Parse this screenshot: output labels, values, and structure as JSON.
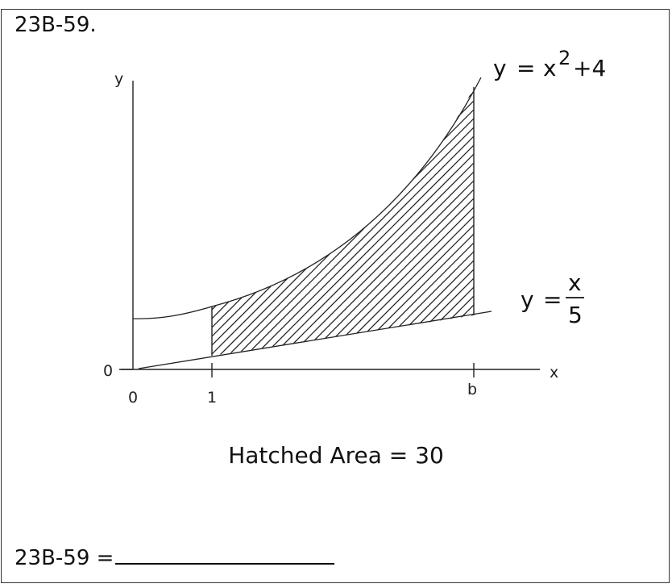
{
  "problem": {
    "id": "23B-59.",
    "caption": "Hatched Area = 30",
    "answer_prefix": "23B-59 ="
  },
  "figure": {
    "y_axis_label": "y",
    "x_axis_label": "x",
    "origin_y_tick": "0",
    "x_ticks": [
      "0",
      "1",
      "b"
    ],
    "upper_curve_label": {
      "lhs": "y",
      "eq": "=",
      "base": "x",
      "exp": "2",
      "rest": "+4"
    },
    "lower_curve_label": {
      "lhs": "y",
      "eq": "=",
      "numerator": "x",
      "denominator": "5"
    }
  }
}
